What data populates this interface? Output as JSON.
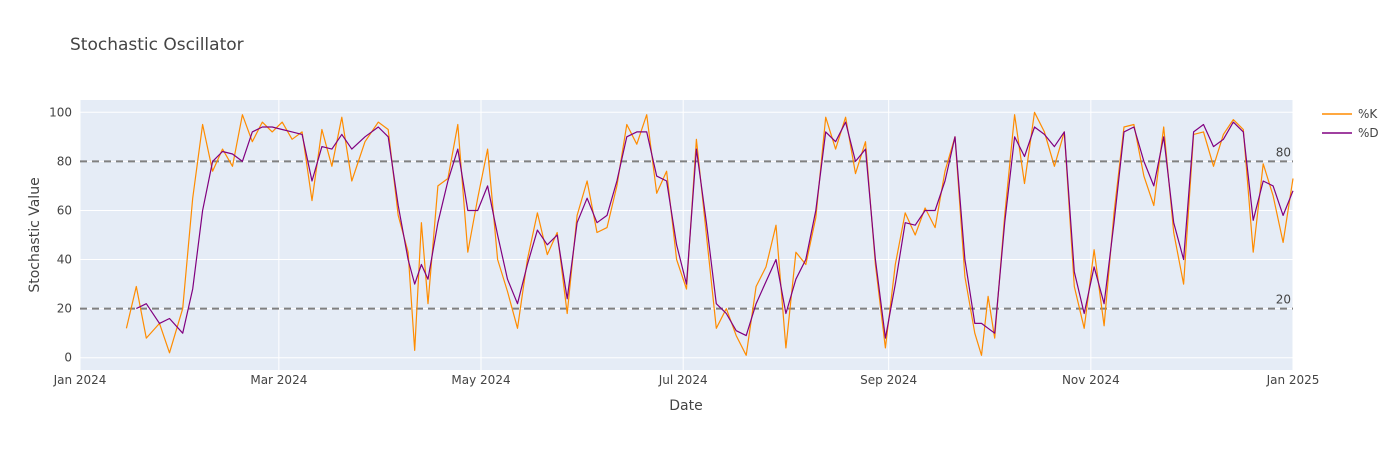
{
  "chart_data": {
    "type": "line",
    "title": "Stochastic Oscillator",
    "xlabel": "Date",
    "ylabel": "Stochastic Value",
    "x_range": [
      "2024-01-01",
      "2025-01-01"
    ],
    "ylim": [
      -5,
      105
    ],
    "grid": true,
    "legend_position": "top-right",
    "x_ticks": [
      {
        "date": "2024-01-01",
        "label": "Jan 2024"
      },
      {
        "date": "2024-03-01",
        "label": "Mar 2024"
      },
      {
        "date": "2024-05-01",
        "label": "May 2024"
      },
      {
        "date": "2024-07-01",
        "label": "Jul 2024"
      },
      {
        "date": "2024-09-01",
        "label": "Sep 2024"
      },
      {
        "date": "2024-11-01",
        "label": "Nov 2024"
      },
      {
        "date": "2025-01-01",
        "label": "Jan 2025"
      }
    ],
    "y_ticks": [
      0,
      20,
      40,
      60,
      80,
      100
    ],
    "reference_lines": [
      {
        "value": 80,
        "label": "80"
      },
      {
        "value": 20,
        "label": "20"
      }
    ],
    "series": [
      {
        "name": "%K",
        "color": "#ff8c00",
        "points": [
          [
            "2024-01-15",
            12
          ],
          [
            "2024-01-18",
            29
          ],
          [
            "2024-01-21",
            8
          ],
          [
            "2024-01-25",
            14
          ],
          [
            "2024-01-28",
            2
          ],
          [
            "2024-02-01",
            20
          ],
          [
            "2024-02-04",
            65
          ],
          [
            "2024-02-07",
            95
          ],
          [
            "2024-02-10",
            76
          ],
          [
            "2024-02-13",
            85
          ],
          [
            "2024-02-16",
            78
          ],
          [
            "2024-02-19",
            99
          ],
          [
            "2024-02-22",
            88
          ],
          [
            "2024-02-25",
            96
          ],
          [
            "2024-02-28",
            92
          ],
          [
            "2024-03-02",
            96
          ],
          [
            "2024-03-05",
            89
          ],
          [
            "2024-03-08",
            92
          ],
          [
            "2024-03-11",
            64
          ],
          [
            "2024-03-14",
            93
          ],
          [
            "2024-03-17",
            78
          ],
          [
            "2024-03-20",
            98
          ],
          [
            "2024-03-23",
            72
          ],
          [
            "2024-03-27",
            88
          ],
          [
            "2024-03-31",
            96
          ],
          [
            "2024-04-03",
            93
          ],
          [
            "2024-04-06",
            58
          ],
          [
            "2024-04-09",
            43
          ],
          [
            "2024-04-11",
            3
          ],
          [
            "2024-04-13",
            55
          ],
          [
            "2024-04-15",
            22
          ],
          [
            "2024-04-18",
            70
          ],
          [
            "2024-04-21",
            73
          ],
          [
            "2024-04-24",
            95
          ],
          [
            "2024-04-27",
            43
          ],
          [
            "2024-04-30",
            65
          ],
          [
            "2024-05-03",
            85
          ],
          [
            "2024-05-06",
            40
          ],
          [
            "2024-05-09",
            27
          ],
          [
            "2024-05-12",
            12
          ],
          [
            "2024-05-15",
            40
          ],
          [
            "2024-05-18",
            59
          ],
          [
            "2024-05-21",
            42
          ],
          [
            "2024-05-24",
            51
          ],
          [
            "2024-05-27",
            18
          ],
          [
            "2024-05-30",
            58
          ],
          [
            "2024-06-02",
            72
          ],
          [
            "2024-06-05",
            51
          ],
          [
            "2024-06-08",
            53
          ],
          [
            "2024-06-11",
            70
          ],
          [
            "2024-06-14",
            95
          ],
          [
            "2024-06-17",
            87
          ],
          [
            "2024-06-20",
            99
          ],
          [
            "2024-06-23",
            67
          ],
          [
            "2024-06-26",
            76
          ],
          [
            "2024-06-29",
            40
          ],
          [
            "2024-07-02",
            28
          ],
          [
            "2024-07-05",
            89
          ],
          [
            "2024-07-08",
            50
          ],
          [
            "2024-07-11",
            12
          ],
          [
            "2024-07-14",
            20
          ],
          [
            "2024-07-17",
            9
          ],
          [
            "2024-07-20",
            1
          ],
          [
            "2024-07-23",
            29
          ],
          [
            "2024-07-26",
            37
          ],
          [
            "2024-07-29",
            54
          ],
          [
            "2024-08-01",
            4
          ],
          [
            "2024-08-04",
            43
          ],
          [
            "2024-08-07",
            38
          ],
          [
            "2024-08-10",
            57
          ],
          [
            "2024-08-13",
            98
          ],
          [
            "2024-08-16",
            85
          ],
          [
            "2024-08-19",
            98
          ],
          [
            "2024-08-22",
            75
          ],
          [
            "2024-08-25",
            88
          ],
          [
            "2024-08-28",
            38
          ],
          [
            "2024-08-31",
            4
          ],
          [
            "2024-09-03",
            38
          ],
          [
            "2024-09-06",
            59
          ],
          [
            "2024-09-09",
            50
          ],
          [
            "2024-09-12",
            61
          ],
          [
            "2024-09-15",
            53
          ],
          [
            "2024-09-18",
            76
          ],
          [
            "2024-09-21",
            90
          ],
          [
            "2024-09-24",
            33
          ],
          [
            "2024-09-27",
            10
          ],
          [
            "2024-09-29",
            1
          ],
          [
            "2024-10-01",
            25
          ],
          [
            "2024-10-03",
            8
          ],
          [
            "2024-10-06",
            58
          ],
          [
            "2024-10-09",
            99
          ],
          [
            "2024-10-12",
            71
          ],
          [
            "2024-10-15",
            100
          ],
          [
            "2024-10-18",
            92
          ],
          [
            "2024-10-21",
            78
          ],
          [
            "2024-10-24",
            92
          ],
          [
            "2024-10-27",
            29
          ],
          [
            "2024-10-30",
            12
          ],
          [
            "2024-11-02",
            44
          ],
          [
            "2024-11-05",
            13
          ],
          [
            "2024-11-08",
            59
          ],
          [
            "2024-11-11",
            94
          ],
          [
            "2024-11-14",
            95
          ],
          [
            "2024-11-17",
            74
          ],
          [
            "2024-11-20",
            62
          ],
          [
            "2024-11-23",
            94
          ],
          [
            "2024-11-26",
            51
          ],
          [
            "2024-11-29",
            30
          ],
          [
            "2024-12-02",
            91
          ],
          [
            "2024-12-05",
            92
          ],
          [
            "2024-12-08",
            78
          ],
          [
            "2024-12-11",
            91
          ],
          [
            "2024-12-14",
            97
          ],
          [
            "2024-12-17",
            93
          ],
          [
            "2024-12-20",
            43
          ],
          [
            "2024-12-23",
            79
          ],
          [
            "2024-12-26",
            66
          ],
          [
            "2024-12-29",
            47
          ],
          [
            "2025-01-01",
            73
          ]
        ]
      },
      {
        "name": "%D",
        "color": "#800080",
        "points": [
          [
            "2024-01-18",
            20
          ],
          [
            "2024-01-21",
            22
          ],
          [
            "2024-01-25",
            14
          ],
          [
            "2024-01-28",
            16
          ],
          [
            "2024-02-01",
            10
          ],
          [
            "2024-02-04",
            28
          ],
          [
            "2024-02-07",
            60
          ],
          [
            "2024-02-10",
            80
          ],
          [
            "2024-02-13",
            84
          ],
          [
            "2024-02-16",
            83
          ],
          [
            "2024-02-19",
            80
          ],
          [
            "2024-02-22",
            92
          ],
          [
            "2024-02-25",
            94
          ],
          [
            "2024-02-28",
            94
          ],
          [
            "2024-03-02",
            93
          ],
          [
            "2024-03-05",
            92
          ],
          [
            "2024-03-08",
            91
          ],
          [
            "2024-03-11",
            72
          ],
          [
            "2024-03-14",
            86
          ],
          [
            "2024-03-17",
            85
          ],
          [
            "2024-03-20",
            91
          ],
          [
            "2024-03-23",
            85
          ],
          [
            "2024-03-27",
            90
          ],
          [
            "2024-03-31",
            94
          ],
          [
            "2024-04-03",
            90
          ],
          [
            "2024-04-06",
            62
          ],
          [
            "2024-04-09",
            40
          ],
          [
            "2024-04-11",
            30
          ],
          [
            "2024-04-13",
            38
          ],
          [
            "2024-04-15",
            32
          ],
          [
            "2024-04-18",
            55
          ],
          [
            "2024-04-21",
            72
          ],
          [
            "2024-04-24",
            85
          ],
          [
            "2024-04-27",
            60
          ],
          [
            "2024-04-30",
            60
          ],
          [
            "2024-05-03",
            70
          ],
          [
            "2024-05-06",
            50
          ],
          [
            "2024-05-09",
            32
          ],
          [
            "2024-05-12",
            22
          ],
          [
            "2024-05-15",
            38
          ],
          [
            "2024-05-18",
            52
          ],
          [
            "2024-05-21",
            46
          ],
          [
            "2024-05-24",
            50
          ],
          [
            "2024-05-27",
            24
          ],
          [
            "2024-05-30",
            55
          ],
          [
            "2024-06-02",
            65
          ],
          [
            "2024-06-05",
            55
          ],
          [
            "2024-06-08",
            58
          ],
          [
            "2024-06-11",
            72
          ],
          [
            "2024-06-14",
            90
          ],
          [
            "2024-06-17",
            92
          ],
          [
            "2024-06-20",
            92
          ],
          [
            "2024-06-23",
            74
          ],
          [
            "2024-06-26",
            72
          ],
          [
            "2024-06-29",
            46
          ],
          [
            "2024-07-02",
            30
          ],
          [
            "2024-07-05",
            85
          ],
          [
            "2024-07-08",
            55
          ],
          [
            "2024-07-11",
            22
          ],
          [
            "2024-07-14",
            18
          ],
          [
            "2024-07-17",
            11
          ],
          [
            "2024-07-20",
            9
          ],
          [
            "2024-07-23",
            22
          ],
          [
            "2024-07-26",
            31
          ],
          [
            "2024-07-29",
            40
          ],
          [
            "2024-08-01",
            18
          ],
          [
            "2024-08-04",
            32
          ],
          [
            "2024-08-07",
            40
          ],
          [
            "2024-08-10",
            60
          ],
          [
            "2024-08-13",
            92
          ],
          [
            "2024-08-16",
            88
          ],
          [
            "2024-08-19",
            96
          ],
          [
            "2024-08-22",
            80
          ],
          [
            "2024-08-25",
            85
          ],
          [
            "2024-08-28",
            40
          ],
          [
            "2024-08-31",
            8
          ],
          [
            "2024-09-03",
            30
          ],
          [
            "2024-09-06",
            55
          ],
          [
            "2024-09-09",
            54
          ],
          [
            "2024-09-12",
            60
          ],
          [
            "2024-09-15",
            60
          ],
          [
            "2024-09-18",
            72
          ],
          [
            "2024-09-21",
            90
          ],
          [
            "2024-09-24",
            40
          ],
          [
            "2024-09-27",
            14
          ],
          [
            "2024-09-29",
            14
          ],
          [
            "2024-10-01",
            12
          ],
          [
            "2024-10-03",
            10
          ],
          [
            "2024-10-06",
            55
          ],
          [
            "2024-10-09",
            90
          ],
          [
            "2024-10-12",
            82
          ],
          [
            "2024-10-15",
            94
          ],
          [
            "2024-10-18",
            91
          ],
          [
            "2024-10-21",
            86
          ],
          [
            "2024-10-24",
            92
          ],
          [
            "2024-10-27",
            35
          ],
          [
            "2024-10-30",
            18
          ],
          [
            "2024-11-02",
            37
          ],
          [
            "2024-11-05",
            22
          ],
          [
            "2024-11-08",
            55
          ],
          [
            "2024-11-11",
            92
          ],
          [
            "2024-11-14",
            94
          ],
          [
            "2024-11-17",
            80
          ],
          [
            "2024-11-20",
            70
          ],
          [
            "2024-11-23",
            90
          ],
          [
            "2024-11-26",
            55
          ],
          [
            "2024-11-29",
            40
          ],
          [
            "2024-12-02",
            92
          ],
          [
            "2024-12-05",
            95
          ],
          [
            "2024-12-08",
            86
          ],
          [
            "2024-12-11",
            89
          ],
          [
            "2024-12-14",
            96
          ],
          [
            "2024-12-17",
            92
          ],
          [
            "2024-12-20",
            56
          ],
          [
            "2024-12-23",
            72
          ],
          [
            "2024-12-26",
            70
          ],
          [
            "2024-12-29",
            58
          ],
          [
            "2025-01-01",
            68
          ]
        ]
      }
    ]
  }
}
